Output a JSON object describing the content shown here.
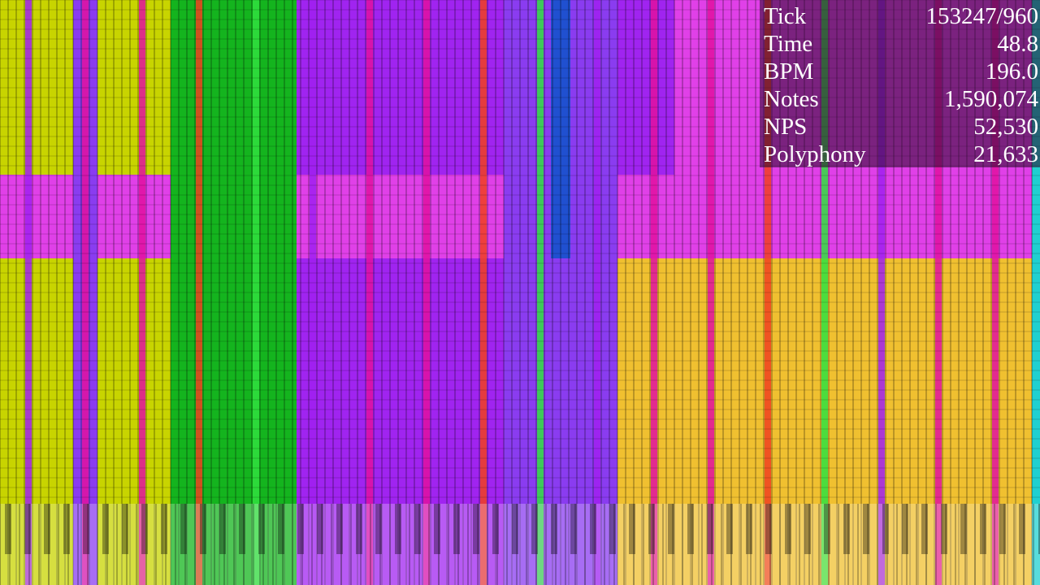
{
  "stats": [
    {
      "label": "Tick",
      "value": "153247/960"
    },
    {
      "label": "Time",
      "value": "48.8"
    },
    {
      "label": "BPM",
      "value": "196.0"
    },
    {
      "label": "Notes",
      "value": "1,590,074"
    },
    {
      "label": "NPS",
      "value": "52,530"
    },
    {
      "label": "Polyphony",
      "value": "21,633"
    }
  ]
}
